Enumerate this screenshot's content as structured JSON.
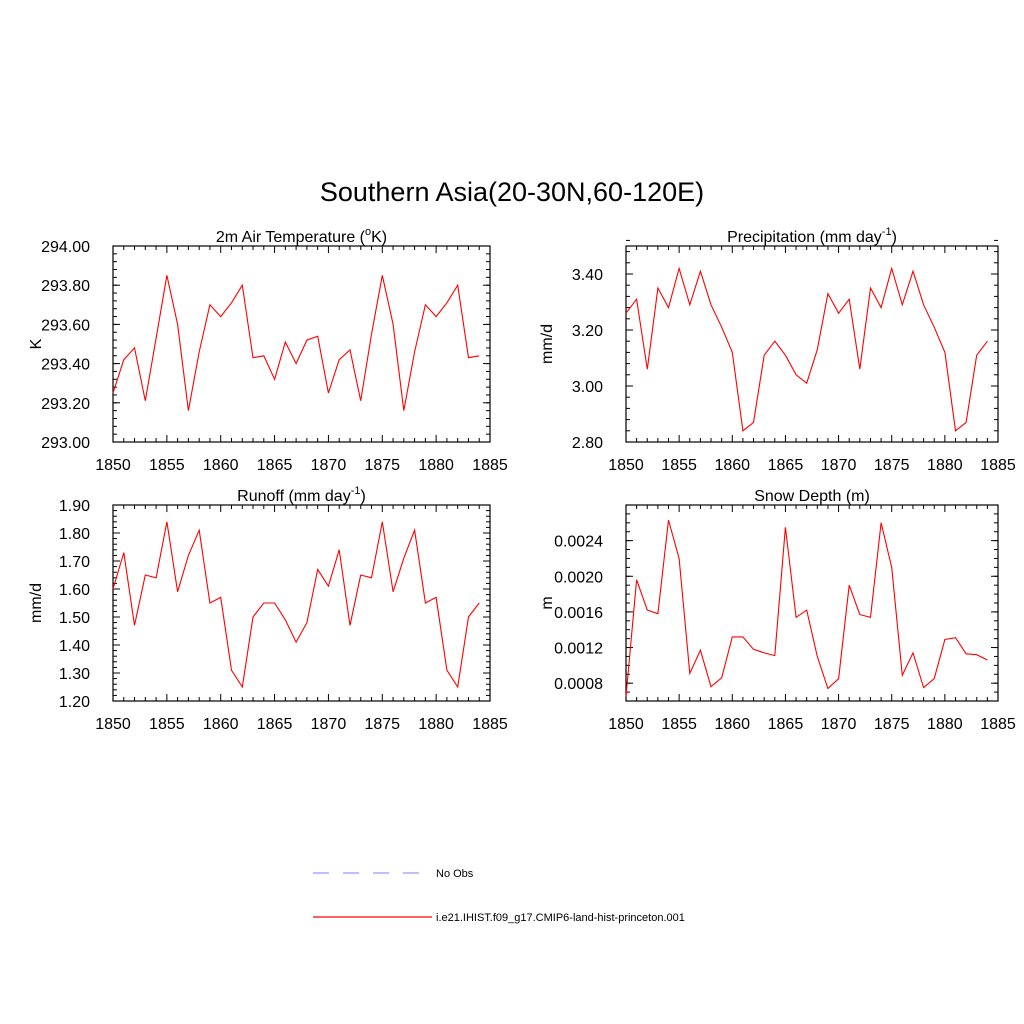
{
  "figure": {
    "title": "Southern Asia(20-30N,60-120E)"
  },
  "legend": {
    "items": [
      {
        "label": "No Obs",
        "color": "#9999ff",
        "dash": true
      },
      {
        "label": "i.e21.IHIST.f09_g17.CMIP6-land-hist-princeton.001",
        "color": "#ff0000",
        "dash": false
      }
    ]
  },
  "chart_data": [
    {
      "type": "line",
      "title_main": "2m Air Temperature (",
      "title_sup": "o",
      "title_tail": "K)",
      "ylabel": "K",
      "xlim": [
        1850,
        1885
      ],
      "ylim": [
        293.0,
        294.0
      ],
      "xticks": [
        "1850",
        "1855",
        "1860",
        "1865",
        "1870",
        "1875",
        "1880",
        "1885"
      ],
      "yticks": [
        "293.00",
        "293.20",
        "293.40",
        "293.60",
        "293.80",
        "294.00"
      ],
      "ytick_values": [
        293.0,
        293.2,
        293.4,
        293.6,
        293.8,
        294.0
      ],
      "yminor": 0.04,
      "x": [
        1850,
        1851,
        1852,
        1853,
        1854,
        1855,
        1856,
        1857,
        1858,
        1859,
        1860,
        1861,
        1862,
        1863,
        1864,
        1865,
        1866,
        1867,
        1868,
        1869,
        1870,
        1871,
        1872,
        1873,
        1874,
        1875,
        1876,
        1877,
        1878,
        1879,
        1880,
        1881,
        1882,
        1883,
        1884
      ],
      "series": [
        {
          "values": [
            293.25,
            293.42,
            293.48,
            293.21,
            293.53,
            293.85,
            293.6,
            293.16,
            293.46,
            293.7,
            293.64,
            293.71,
            293.8,
            293.43,
            293.44,
            293.32,
            293.51,
            293.4,
            293.52,
            293.54,
            293.25,
            293.42,
            293.47,
            293.21,
            293.55,
            293.85,
            293.6,
            293.16,
            293.46,
            293.7,
            293.64,
            293.71,
            293.8,
            293.43,
            293.44
          ],
          "color": "#ff0000"
        }
      ]
    },
    {
      "type": "line",
      "title_main": "Precipitation (mm day",
      "title_sup": "-1",
      "title_tail": ")",
      "ylabel": "mm/d",
      "xlim": [
        1850,
        1885
      ],
      "ylim": [
        2.8,
        3.5
      ],
      "xticks": [
        "1850",
        "1855",
        "1860",
        "1865",
        "1870",
        "1875",
        "1880",
        "1885"
      ],
      "yticks": [
        "2.80",
        "3.00",
        "3.20",
        "3.40"
      ],
      "ytick_values": [
        2.8,
        3.0,
        3.2,
        3.4
      ],
      "yminor": 0.04,
      "x": [
        1850,
        1851,
        1852,
        1853,
        1854,
        1855,
        1856,
        1857,
        1858,
        1859,
        1860,
        1861,
        1862,
        1863,
        1864,
        1865,
        1866,
        1867,
        1868,
        1869,
        1870,
        1871,
        1872,
        1873,
        1874,
        1875,
        1876,
        1877,
        1878,
        1879,
        1880,
        1881,
        1882,
        1883,
        1884
      ],
      "series": [
        {
          "values": [
            3.26,
            3.31,
            3.06,
            3.35,
            3.28,
            3.42,
            3.29,
            3.41,
            3.29,
            3.21,
            3.12,
            2.84,
            2.87,
            3.11,
            3.16,
            3.11,
            3.04,
            3.01,
            3.13,
            3.33,
            3.26,
            3.31,
            3.06,
            3.35,
            3.28,
            3.42,
            3.29,
            3.41,
            3.29,
            3.21,
            3.12,
            2.84,
            2.87,
            3.11,
            3.16
          ],
          "color": "#ff0000"
        }
      ]
    },
    {
      "type": "line",
      "title_main": "Runoff (mm day",
      "title_sup": "-1",
      "title_tail": ")",
      "ylabel": "mm/d",
      "xlim": [
        1850,
        1885
      ],
      "ylim": [
        1.2,
        1.9
      ],
      "xticks": [
        "1850",
        "1855",
        "1860",
        "1865",
        "1870",
        "1875",
        "1880",
        "1885"
      ],
      "yticks": [
        "1.20",
        "1.30",
        "1.40",
        "1.50",
        "1.60",
        "1.70",
        "1.80",
        "1.90"
      ],
      "ytick_values": [
        1.2,
        1.3,
        1.4,
        1.5,
        1.6,
        1.7,
        1.8,
        1.9
      ],
      "yminor": 0.02,
      "x": [
        1850,
        1851,
        1852,
        1853,
        1854,
        1855,
        1856,
        1857,
        1858,
        1859,
        1860,
        1861,
        1862,
        1863,
        1864,
        1865,
        1866,
        1867,
        1868,
        1869,
        1870,
        1871,
        1872,
        1873,
        1874,
        1875,
        1876,
        1877,
        1878,
        1879,
        1880,
        1881,
        1882,
        1883,
        1884
      ],
      "series": [
        {
          "values": [
            1.6,
            1.73,
            1.47,
            1.65,
            1.64,
            1.84,
            1.59,
            1.72,
            1.81,
            1.55,
            1.57,
            1.31,
            1.25,
            1.5,
            1.55,
            1.55,
            1.49,
            1.41,
            1.48,
            1.67,
            1.61,
            1.74,
            1.47,
            1.65,
            1.64,
            1.84,
            1.59,
            1.71,
            1.81,
            1.55,
            1.57,
            1.31,
            1.25,
            1.5,
            1.55
          ],
          "color": "#ff0000"
        }
      ]
    },
    {
      "type": "line",
      "title_main": "Snow Depth (m)",
      "title_sup": "",
      "title_tail": "",
      "ylabel": "m",
      "xlim": [
        1850,
        1885
      ],
      "ylim": [
        0.0006,
        0.0028
      ],
      "xticks": [
        "1850",
        "1855",
        "1860",
        "1865",
        "1870",
        "1875",
        "1880",
        "1885"
      ],
      "yticks": [
        "0.0008",
        "0.0012",
        "0.0016",
        "0.0020",
        "0.0024"
      ],
      "ytick_values": [
        0.0008,
        0.0012,
        0.0016,
        0.002,
        0.0024
      ],
      "yminor": 0.0001,
      "x": [
        1850,
        1851,
        1852,
        1853,
        1854,
        1855,
        1856,
        1857,
        1858,
        1859,
        1860,
        1861,
        1862,
        1863,
        1864,
        1865,
        1866,
        1867,
        1868,
        1869,
        1870,
        1871,
        1872,
        1873,
        1874,
        1875,
        1876,
        1877,
        1878,
        1879,
        1880,
        1881,
        1882,
        1883,
        1884
      ],
      "series": [
        {
          "values": [
            0.00065,
            0.00196,
            0.00162,
            0.00158,
            0.00263,
            0.0022,
            0.00091,
            0.00117,
            0.00076,
            0.00086,
            0.00132,
            0.00132,
            0.00118,
            0.00114,
            0.00111,
            0.00255,
            0.00154,
            0.00162,
            0.0011,
            0.00074,
            0.00085,
            0.0019,
            0.00157,
            0.00154,
            0.0026,
            0.0021,
            0.00089,
            0.00114,
            0.00075,
            0.00085,
            0.00129,
            0.00131,
            0.00113,
            0.00112,
            0.00106
          ],
          "color": "#ff0000"
        }
      ]
    }
  ]
}
